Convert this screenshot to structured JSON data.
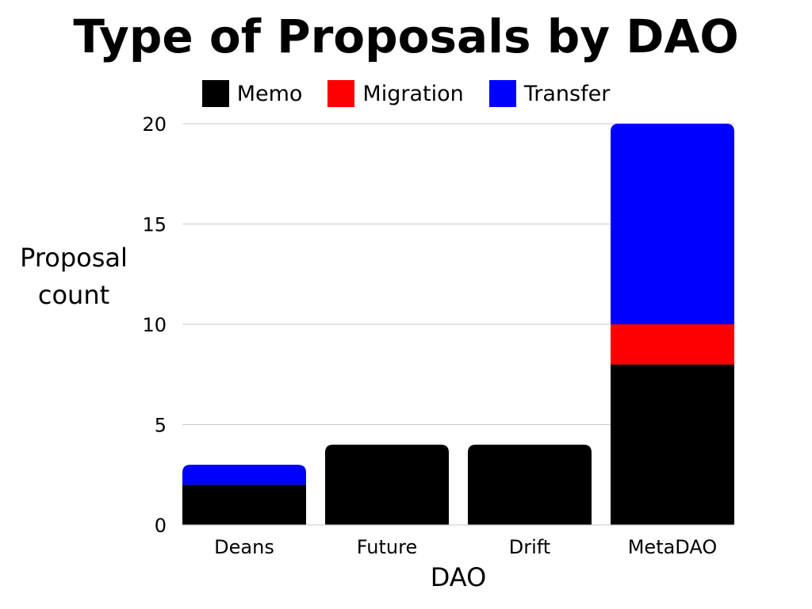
{
  "chart_data": {
    "type": "bar",
    "stacked": true,
    "title": "Type of Proposals by DAO",
    "xlabel": "DAO",
    "ylabel": [
      "Proposal",
      "count"
    ],
    "categories": [
      "Deans",
      "Future",
      "Drift",
      "MetaDAO"
    ],
    "series": [
      {
        "name": "Memo",
        "color": "#000000",
        "values": [
          2,
          4,
          4,
          8
        ]
      },
      {
        "name": "Migration",
        "color": "#ff0000",
        "values": [
          0,
          0,
          0,
          2
        ]
      },
      {
        "name": "Transfer",
        "color": "#0000ff",
        "values": [
          1,
          0,
          0,
          10
        ]
      }
    ],
    "ylim": [
      0,
      20
    ],
    "yticks": [
      0,
      5,
      10,
      15,
      20
    ],
    "grid": true,
    "legend_position": "top"
  }
}
